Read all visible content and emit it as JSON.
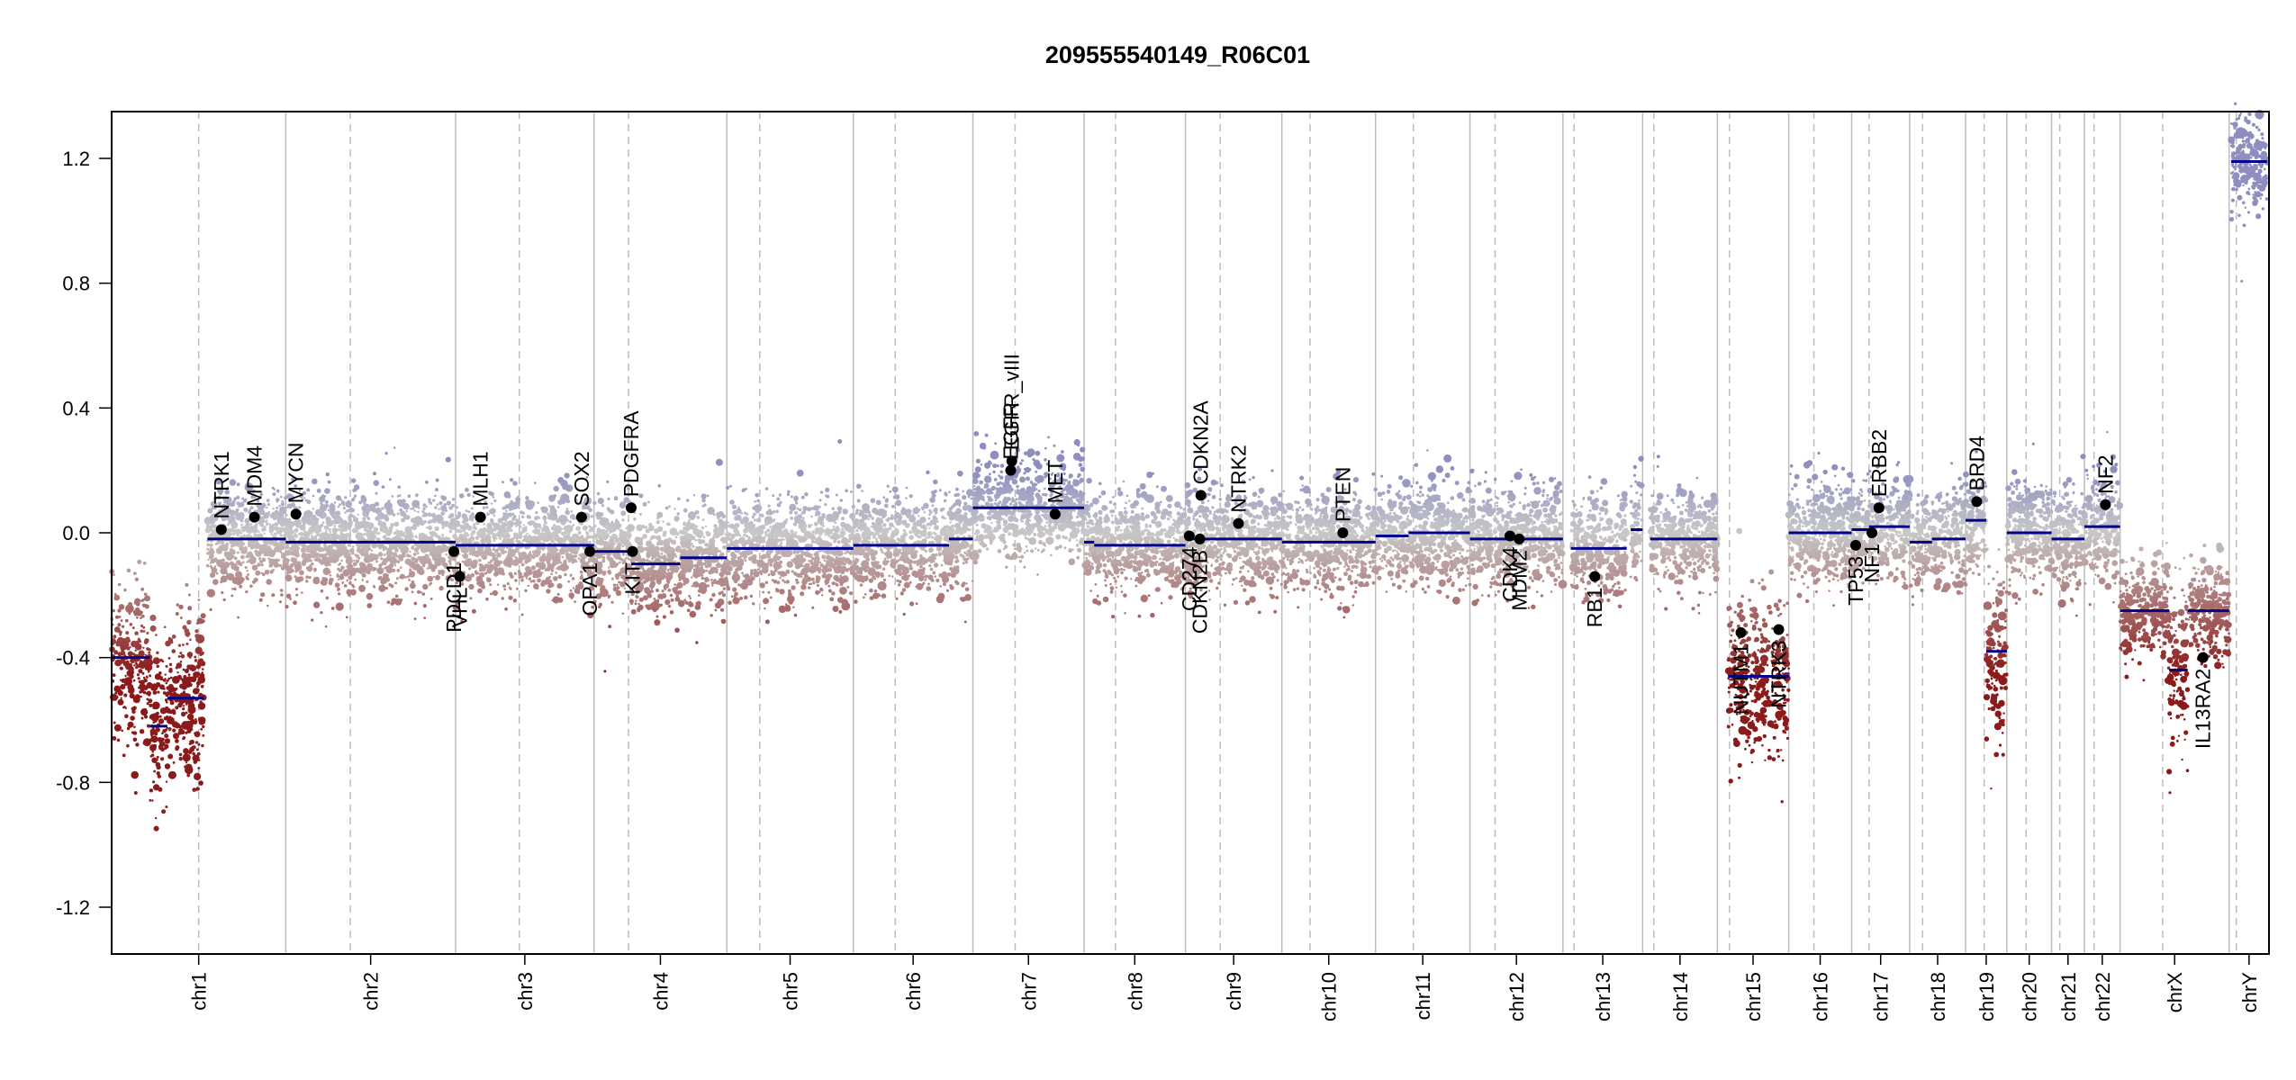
{
  "chart_data": {
    "type": "scatter",
    "title": "209555540149_R06C01",
    "xlabel": "",
    "ylabel": "",
    "ylim": [
      -1.35,
      1.35
    ],
    "yticks": [
      -1.2,
      -0.8,
      -0.4,
      0.0,
      0.4,
      0.8,
      1.2
    ],
    "ytick_labels": [
      "-1.2",
      "-0.8",
      "-0.4",
      "0.0",
      "0.4",
      "0.8",
      "1.2"
    ],
    "grid": false,
    "colors": {
      "gain": "#8e8ec0",
      "neutral": "#c8c8c8",
      "loss": "#8b1a1a",
      "segment": "#00008b",
      "gene_point": "#000000",
      "boundary": "#bdbdbd"
    },
    "chromosomes": [
      {
        "name": "chr1",
        "size": 249,
        "centro": 0.5
      },
      {
        "name": "chr2",
        "size": 243,
        "centro": 0.38
      },
      {
        "name": "chr3",
        "size": 198,
        "centro": 0.46
      },
      {
        "name": "chr4",
        "size": 190,
        "centro": 0.26
      },
      {
        "name": "chr5",
        "size": 181,
        "centro": 0.26
      },
      {
        "name": "chr6",
        "size": 171,
        "centro": 0.35
      },
      {
        "name": "chr7",
        "size": 159,
        "centro": 0.38
      },
      {
        "name": "chr8",
        "size": 145,
        "centro": 0.31
      },
      {
        "name": "chr9",
        "size": 138,
        "centro": 0.36
      },
      {
        "name": "chr10",
        "size": 134,
        "centro": 0.3
      },
      {
        "name": "chr11",
        "size": 135,
        "centro": 0.4
      },
      {
        "name": "chr12",
        "size": 133,
        "centro": 0.27
      },
      {
        "name": "chr13",
        "size": 114,
        "centro": 0.14
      },
      {
        "name": "chr14",
        "size": 107,
        "centro": 0.15
      },
      {
        "name": "chr15",
        "size": 102,
        "centro": 0.17
      },
      {
        "name": "chr16",
        "size": 90,
        "centro": 0.4
      },
      {
        "name": "chr17",
        "size": 83,
        "centro": 0.3
      },
      {
        "name": "chr18",
        "size": 80,
        "centro": 0.23
      },
      {
        "name": "chr19",
        "size": 59,
        "centro": 0.45
      },
      {
        "name": "chr20",
        "size": 64,
        "centro": 0.43
      },
      {
        "name": "chr21",
        "size": 47,
        "centro": 0.25
      },
      {
        "name": "chr22",
        "size": 51,
        "centro": 0.27
      },
      {
        "name": "chrX",
        "size": 156,
        "centro": 0.39
      },
      {
        "name": "chrY",
        "size": 57,
        "centro": 0.18
      }
    ],
    "segments": [
      {
        "chr": 0,
        "start": 0.0,
        "end": 0.22,
        "value": -0.4
      },
      {
        "chr": 0,
        "start": 0.22,
        "end": 0.32,
        "value": -0.62
      },
      {
        "chr": 0,
        "start": 0.32,
        "end": 0.53,
        "value": -0.53
      },
      {
        "chr": 0,
        "start": 0.55,
        "end": 1.0,
        "value": -0.02
      },
      {
        "chr": 1,
        "start": 0.0,
        "end": 1.0,
        "value": -0.03
      },
      {
        "chr": 2,
        "start": 0.0,
        "end": 1.0,
        "value": -0.04
      },
      {
        "chr": 3,
        "start": 0.0,
        "end": 0.28,
        "value": -0.06
      },
      {
        "chr": 3,
        "start": 0.28,
        "end": 0.65,
        "value": -0.1
      },
      {
        "chr": 3,
        "start": 0.65,
        "end": 1.0,
        "value": -0.08
      },
      {
        "chr": 4,
        "start": 0.0,
        "end": 1.0,
        "value": -0.05
      },
      {
        "chr": 5,
        "start": 0.0,
        "end": 0.8,
        "value": -0.04
      },
      {
        "chr": 5,
        "start": 0.8,
        "end": 1.0,
        "value": -0.02
      },
      {
        "chr": 6,
        "start": 0.0,
        "end": 1.0,
        "value": 0.08
      },
      {
        "chr": 7,
        "start": 0.0,
        "end": 0.1,
        "value": -0.03
      },
      {
        "chr": 7,
        "start": 0.1,
        "end": 1.0,
        "value": -0.04
      },
      {
        "chr": 8,
        "start": 0.0,
        "end": 1.0,
        "value": -0.02
      },
      {
        "chr": 9,
        "start": 0.0,
        "end": 1.0,
        "value": -0.03
      },
      {
        "chr": 10,
        "start": 0.0,
        "end": 0.35,
        "value": -0.01
      },
      {
        "chr": 10,
        "start": 0.35,
        "end": 1.0,
        "value": 0.0
      },
      {
        "chr": 11,
        "start": 0.0,
        "end": 1.0,
        "value": -0.02
      },
      {
        "chr": 12,
        "start": 0.1,
        "end": 0.8,
        "value": -0.05
      },
      {
        "chr": 12,
        "start": 0.85,
        "end": 1.0,
        "value": 0.01
      },
      {
        "chr": 13,
        "start": 0.1,
        "end": 1.0,
        "value": -0.02
      },
      {
        "chr": 14,
        "start": 0.15,
        "end": 1.0,
        "value": -0.46
      },
      {
        "chr": 15,
        "start": 0.0,
        "end": 1.0,
        "value": 0.0
      },
      {
        "chr": 16,
        "start": 0.0,
        "end": 0.3,
        "value": 0.01
      },
      {
        "chr": 16,
        "start": 0.3,
        "end": 1.0,
        "value": 0.02
      },
      {
        "chr": 17,
        "start": 0.0,
        "end": 0.4,
        "value": -0.03
      },
      {
        "chr": 17,
        "start": 0.4,
        "end": 1.0,
        "value": -0.02
      },
      {
        "chr": 18,
        "start": 0.0,
        "end": 0.5,
        "value": 0.04
      },
      {
        "chr": 18,
        "start": 0.5,
        "end": 1.0,
        "value": -0.38
      },
      {
        "chr": 19,
        "start": 0.0,
        "end": 1.0,
        "value": 0.0
      },
      {
        "chr": 20,
        "start": 0.0,
        "end": 1.0,
        "value": -0.02
      },
      {
        "chr": 21,
        "start": 0.0,
        "end": 1.0,
        "value": 0.02
      },
      {
        "chr": 22,
        "start": 0.0,
        "end": 0.45,
        "value": -0.25
      },
      {
        "chr": 22,
        "start": 0.45,
        "end": 0.62,
        "value": -0.44
      },
      {
        "chr": 22,
        "start": 0.62,
        "end": 1.0,
        "value": -0.25
      },
      {
        "chr": 23,
        "start": 0.05,
        "end": 0.95,
        "value": 1.19
      }
    ],
    "genes": [
      {
        "name": "NTRK1",
        "chr": 0,
        "pos": 0.63,
        "value": 0.01,
        "side": "above"
      },
      {
        "name": "MDM4",
        "chr": 0,
        "pos": 0.82,
        "value": 0.05,
        "side": "above"
      },
      {
        "name": "MYCN",
        "chr": 1,
        "pos": 0.06,
        "value": 0.06,
        "side": "above"
      },
      {
        "name": "PDCD1",
        "chr": 1,
        "pos": 0.99,
        "value": -0.06,
        "side": "below"
      },
      {
        "name": "VHL",
        "chr": 2,
        "pos": 0.03,
        "value": -0.14,
        "side": "below"
      },
      {
        "name": "MLH1",
        "chr": 2,
        "pos": 0.18,
        "value": 0.05,
        "side": "above"
      },
      {
        "name": "SOX2",
        "chr": 2,
        "pos": 0.91,
        "value": 0.05,
        "side": "above"
      },
      {
        "name": "OPA1",
        "chr": 2,
        "pos": 0.97,
        "value": -0.06,
        "side": "below"
      },
      {
        "name": "PDGFRA",
        "chr": 3,
        "pos": 0.28,
        "value": 0.08,
        "side": "above"
      },
      {
        "name": "KIT",
        "chr": 3,
        "pos": 0.29,
        "value": -0.06,
        "side": "below"
      },
      {
        "name": "EGFR",
        "chr": 6,
        "pos": 0.34,
        "value": 0.2,
        "side": "above"
      },
      {
        "name": "EGFR_vIII",
        "chr": 6,
        "pos": 0.35,
        "value": 0.23,
        "side": "above"
      },
      {
        "name": "MET",
        "chr": 6,
        "pos": 0.74,
        "value": 0.06,
        "side": "above"
      },
      {
        "name": "CD274",
        "chr": 8,
        "pos": 0.04,
        "value": -0.01,
        "side": "below"
      },
      {
        "name": "CDKN2B",
        "chr": 8,
        "pos": 0.15,
        "value": -0.02,
        "side": "below"
      },
      {
        "name": "CDKN2A",
        "chr": 8,
        "pos": 0.16,
        "value": 0.12,
        "side": "above"
      },
      {
        "name": "NTRK2",
        "chr": 8,
        "pos": 0.55,
        "value": 0.03,
        "side": "above"
      },
      {
        "name": "PTEN",
        "chr": 9,
        "pos": 0.65,
        "value": 0.0,
        "side": "above"
      },
      {
        "name": "CDK4",
        "chr": 11,
        "pos": 0.43,
        "value": -0.01,
        "side": "below"
      },
      {
        "name": "MDM2",
        "chr": 11,
        "pos": 0.53,
        "value": -0.02,
        "side": "below"
      },
      {
        "name": "RB1",
        "chr": 12,
        "pos": 0.4,
        "value": -0.14,
        "side": "below"
      },
      {
        "name": "NUTM1",
        "chr": 14,
        "pos": 0.33,
        "value": -0.32,
        "side": "below"
      },
      {
        "name": "NTRK3",
        "chr": 14,
        "pos": 0.86,
        "value": -0.31,
        "side": "below"
      },
      {
        "name": "TP53",
        "chr": 16,
        "pos": 0.07,
        "value": -0.04,
        "side": "below"
      },
      {
        "name": "NF1",
        "chr": 16,
        "pos": 0.35,
        "value": 0.0,
        "side": "below"
      },
      {
        "name": "ERBB2",
        "chr": 16,
        "pos": 0.47,
        "value": 0.08,
        "side": "above"
      },
      {
        "name": "BRD4",
        "chr": 18,
        "pos": 0.27,
        "value": 0.1,
        "side": "above"
      },
      {
        "name": "NF2",
        "chr": 21,
        "pos": 0.59,
        "value": 0.09,
        "side": "above"
      },
      {
        "name": "IL13RA2",
        "chr": 22,
        "pos": 0.76,
        "value": -0.4,
        "side": "below"
      }
    ]
  }
}
